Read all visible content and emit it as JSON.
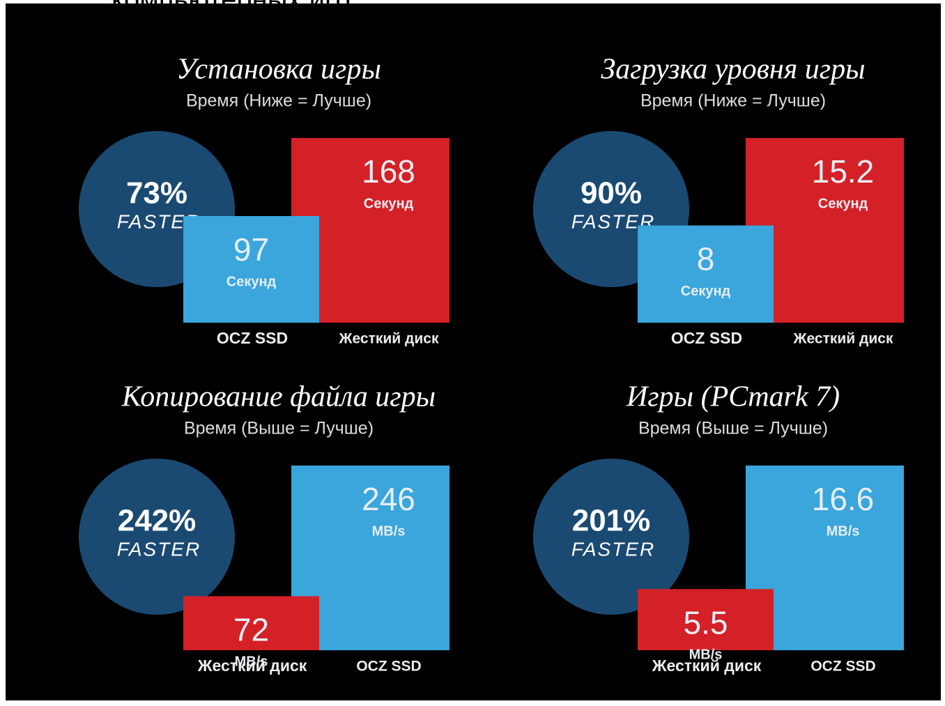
{
  "header": "компьютерных игр",
  "chart_data": [
    {
      "type": "bar",
      "title": "Установка игры",
      "subtitle": "Время (Ниже = Лучше)",
      "categories": [
        "OCZ SSD",
        "Жесткий диск"
      ],
      "values": [
        97,
        168
      ],
      "unit": "Секунд",
      "colors": [
        "#3aa6dc",
        "#d42127"
      ],
      "annotation": {
        "value": "73%",
        "label": "FASTER"
      }
    },
    {
      "type": "bar",
      "title": "Загрузка уровня игры",
      "subtitle": "Время (Ниже = Лучше)",
      "categories": [
        "OCZ SSD",
        "Жесткий диск"
      ],
      "values": [
        8,
        15.2
      ],
      "unit": "Секунд",
      "colors": [
        "#3aa6dc",
        "#d42127"
      ],
      "annotation": {
        "value": "90%",
        "label": "FASTER"
      }
    },
    {
      "type": "bar",
      "title": "Копирование файла игры",
      "subtitle": "Время (Выше = Лучше)",
      "categories": [
        "Жесткий диск",
        "OCZ SSD"
      ],
      "values": [
        72,
        246
      ],
      "unit": "MB/s",
      "colors": [
        "#d42127",
        "#3aa6dc"
      ],
      "annotation": {
        "value": "242%",
        "label": "FASTER"
      }
    },
    {
      "type": "bar",
      "title": "Игры (PCmark 7)",
      "subtitle": "Время (Выше = Лучше)",
      "categories": [
        "Жесткий диск",
        "OCZ SSD"
      ],
      "values": [
        5.5,
        16.6
      ],
      "unit": "MB/s",
      "colors": [
        "#d42127",
        "#3aa6dc"
      ],
      "annotation": {
        "value": "201%",
        "label": "FASTER"
      }
    }
  ]
}
